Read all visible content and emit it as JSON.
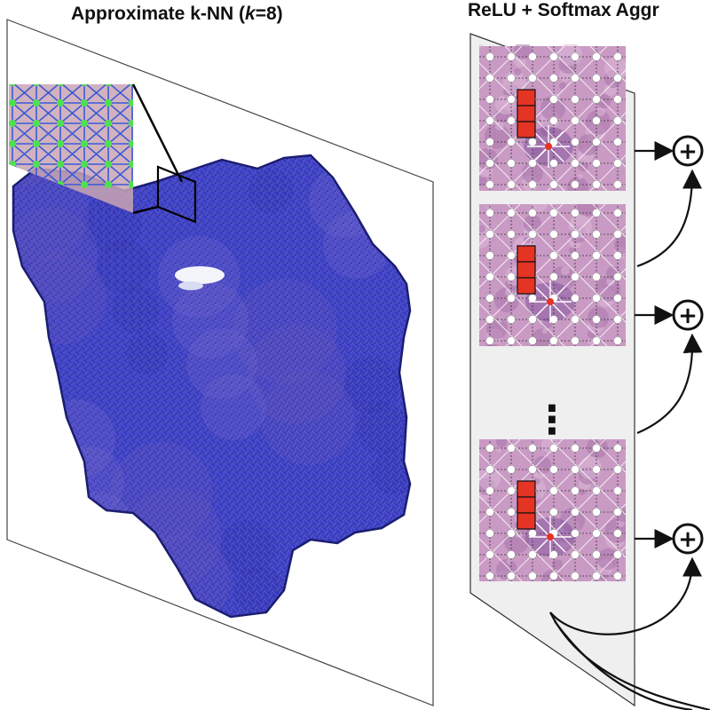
{
  "title_left": {
    "prefix": "Approximate k-NN (",
    "k_symbol": "k",
    "suffix": "=8)"
  },
  "title_right": "ReLU + Softmax Aggr",
  "sum_symbol": "+",
  "ellipsis": "⋮",
  "colors": {
    "tissue": "#3b3dc0",
    "tissue_dark": "#25289a",
    "graph_edge": "#4a56c8",
    "zoom_node": "#4ee04e",
    "zoom_edge": "#3b5ad8",
    "he_pink": "#c99ac4",
    "he_node": "#ffffff",
    "center_node": "#e53324",
    "feature_block": "#e53324",
    "arrow": "#111111",
    "panel_bg": "#eeeeee"
  },
  "icons": [
    "plus-circle-icon",
    "vertical-ellipsis-icon"
  ]
}
